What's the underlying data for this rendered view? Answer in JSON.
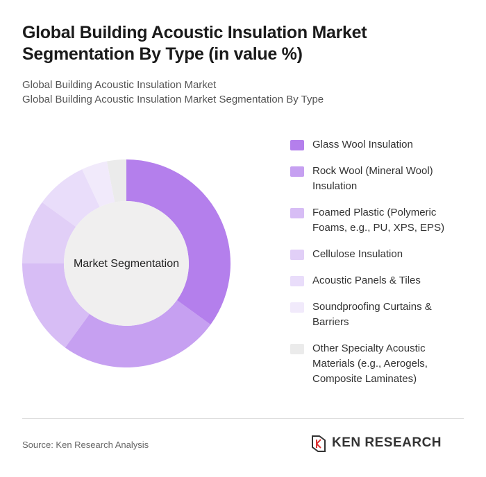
{
  "chart_data": {
    "type": "pie",
    "title": "Global Building Acoustic Insulation Market Segmentation By Type (in value %)",
    "subtitle": [
      "Global Building Acoustic Insulation Market",
      "Global Building Acoustic Insulation Market Segmentation By Type"
    ],
    "center_label": "Market Segmentation",
    "categories": [
      "Glass Wool Insulation",
      "Rock Wool (Mineral Wool) Insulation",
      "Foamed Plastic (Polymeric Foams, e.g., PU, XPS, EPS)",
      "Cellulose Insulation",
      "Acoustic Panels & Tiles",
      "Soundproofing Curtains & Barriers",
      "Other Specialty Acoustic Materials (e.g., Aerogels, Composite Laminates)"
    ],
    "values": [
      35,
      25,
      15,
      10,
      8,
      4,
      3
    ],
    "colors": [
      "#b47fec",
      "#c6a0f1",
      "#d7bdf5",
      "#e1cff7",
      "#e9ddfa",
      "#f1eafb",
      "#ebebeb"
    ],
    "source": "Source: Ken Research Analysis",
    "brand": "KEN RESEARCH"
  }
}
